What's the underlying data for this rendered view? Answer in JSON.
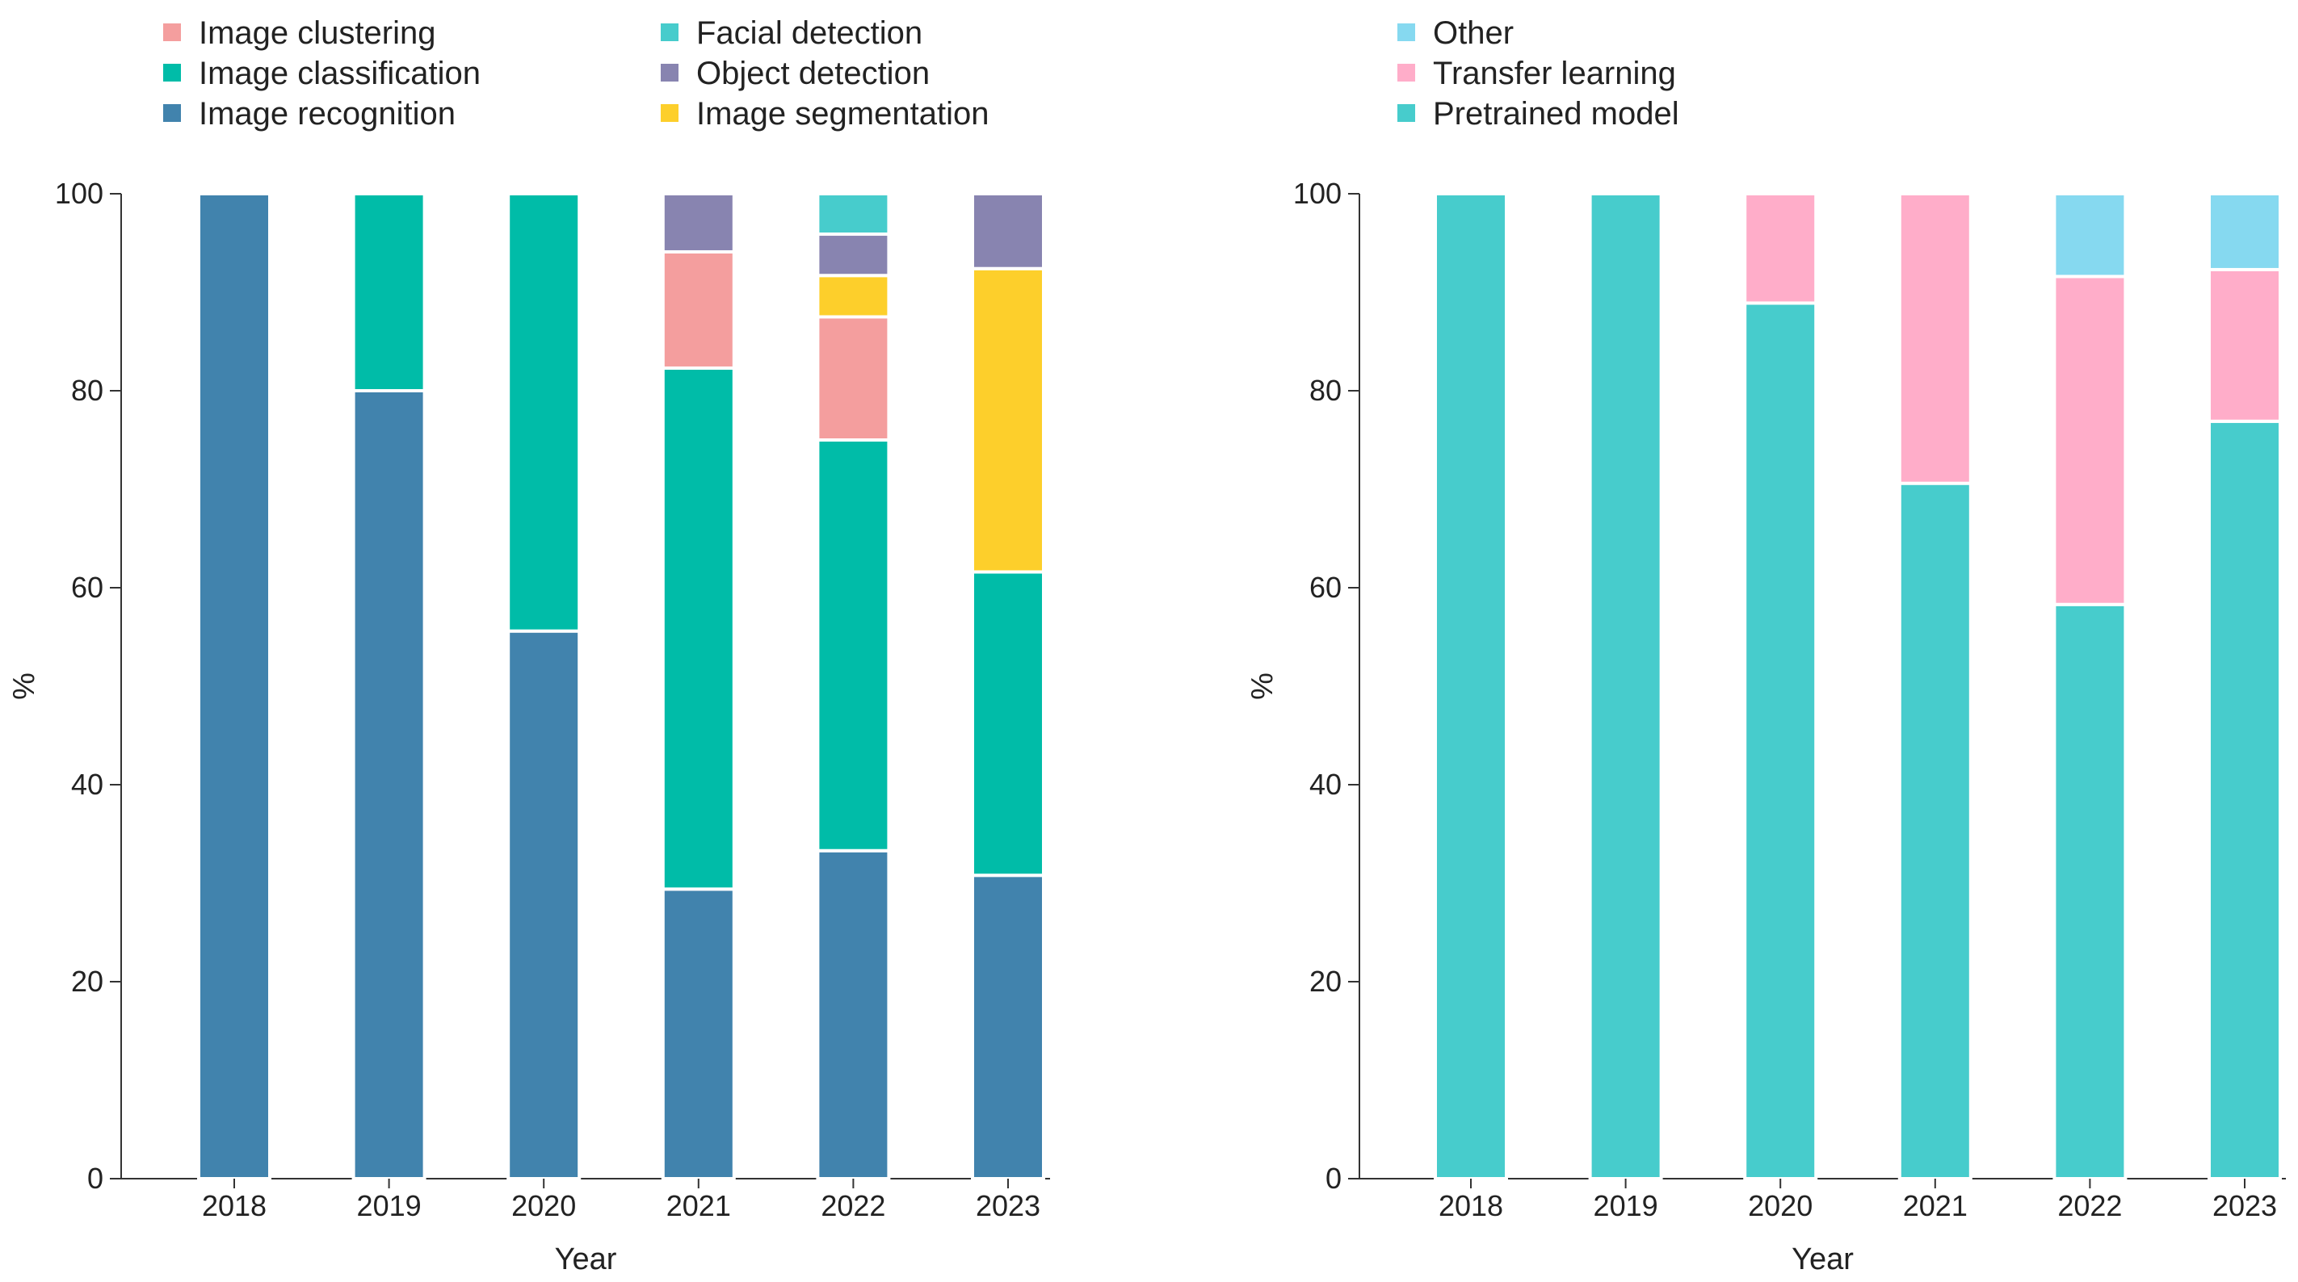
{
  "chart_data": [
    {
      "type": "bar",
      "stacked": true,
      "title": "",
      "xlabel": "Year",
      "ylabel": "%",
      "ylim": [
        0,
        100
      ],
      "yticks": [
        0,
        20,
        40,
        60,
        80,
        100
      ],
      "categories": [
        "2018",
        "2019",
        "2020",
        "2021",
        "2022",
        "2023"
      ],
      "legend_position": "top",
      "legend": [
        {
          "name": "Image clustering",
          "color": "#f49e9e"
        },
        {
          "name": "Image classification",
          "color": "#00bca8"
        },
        {
          "name": "Image recognition",
          "color": "#4183ad"
        },
        {
          "name": "Facial detection",
          "color": "#47cccc"
        },
        {
          "name": "Object detection",
          "color": "#8884b0"
        },
        {
          "name": "Image segmentation",
          "color": "#fdcf2b"
        }
      ],
      "series": [
        {
          "name": "Image recognition",
          "color": "#4183ad",
          "values": [
            100,
            80,
            55.6,
            29.4,
            33.3,
            30.8
          ]
        },
        {
          "name": "Image classification",
          "color": "#00bca8",
          "values": [
            0,
            20,
            44.4,
            52.9,
            41.7,
            30.8
          ]
        },
        {
          "name": "Image clustering",
          "color": "#f49e9e",
          "values": [
            0,
            0,
            0,
            11.8,
            12.5,
            0
          ]
        },
        {
          "name": "Image segmentation",
          "color": "#fdcf2b",
          "values": [
            0,
            0,
            0,
            0,
            4.2,
            30.8
          ]
        },
        {
          "name": "Object detection",
          "color": "#8884b0",
          "values": [
            0,
            0,
            0,
            5.9,
            4.2,
            7.6
          ]
        },
        {
          "name": "Facial detection",
          "color": "#47cccc",
          "values": [
            0,
            0,
            0,
            0,
            4.1,
            0
          ]
        }
      ]
    },
    {
      "type": "bar",
      "stacked": true,
      "title": "",
      "xlabel": "Year",
      "ylabel": "%",
      "ylim": [
        0,
        100
      ],
      "yticks": [
        0,
        20,
        40,
        60,
        80,
        100
      ],
      "categories": [
        "2018",
        "2019",
        "2020",
        "2021",
        "2022",
        "2023"
      ],
      "legend_position": "top",
      "legend": [
        {
          "name": "Other",
          "color": "#86d9f0"
        },
        {
          "name": "Transfer learning",
          "color": "#ffadc9"
        },
        {
          "name": "Pretrained model",
          "color": "#47cccc"
        }
      ],
      "series": [
        {
          "name": "Pretrained model",
          "color": "#47cccc",
          "values": [
            100,
            100,
            88.9,
            70.6,
            58.3,
            76.9
          ]
        },
        {
          "name": "Transfer learning",
          "color": "#ffadc9",
          "values": [
            0,
            0,
            11.1,
            29.4,
            33.3,
            15.4
          ]
        },
        {
          "name": "Other",
          "color": "#86d9f0",
          "values": [
            0,
            0,
            0,
            0,
            8.4,
            7.7
          ]
        }
      ]
    }
  ]
}
